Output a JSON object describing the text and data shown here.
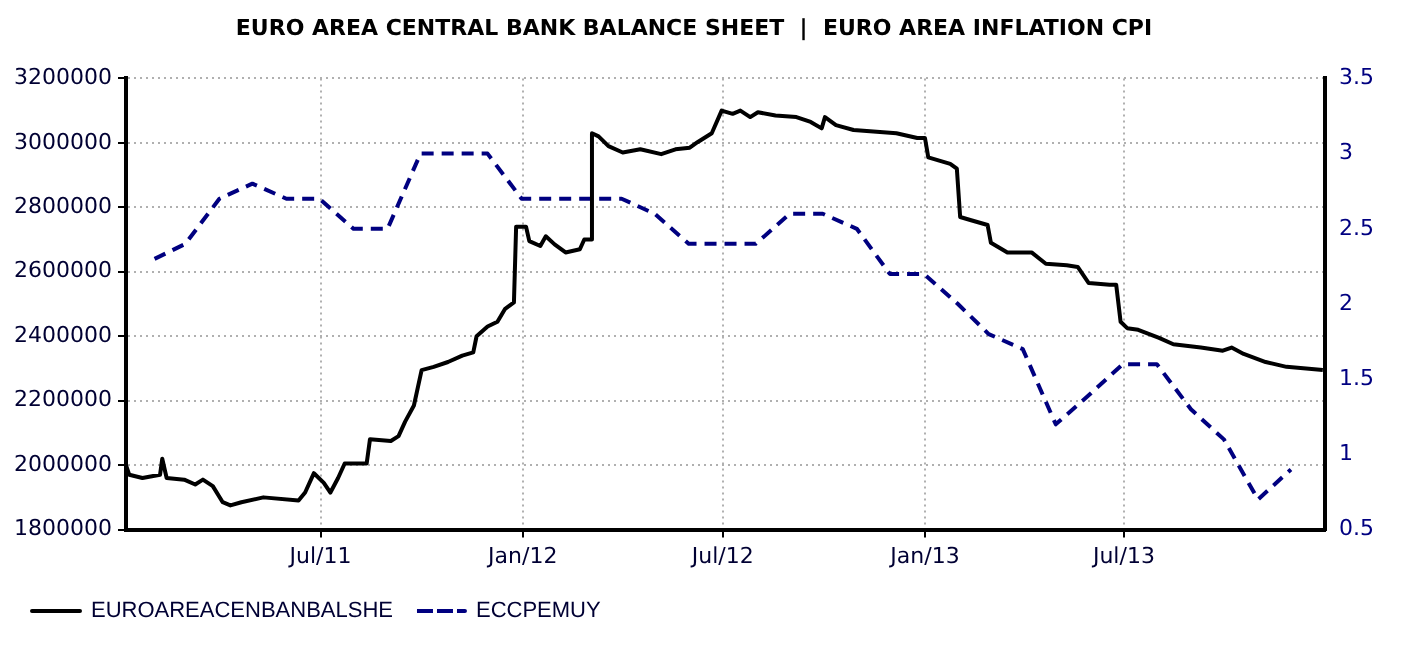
{
  "chart_data": {
    "type": "line",
    "title": "EURO AREA CENTRAL BANK BALANCE SHEET  |  EURO AREA INFLATION CPI",
    "xlim": [
      "2011-01-05",
      "2013-12-31"
    ],
    "xticks": [
      {
        "value": "2011-07-01",
        "label": "Jul/11"
      },
      {
        "value": "2012-01-01",
        "label": "Jan/12"
      },
      {
        "value": "2012-07-01",
        "label": "Jul/12"
      },
      {
        "value": "2013-01-01",
        "label": "Jan/13"
      },
      {
        "value": "2013-07-01",
        "label": "Jul/13"
      }
    ],
    "ylim": [
      1800000,
      3200000
    ],
    "yticks": [
      1800000,
      2000000,
      2200000,
      2400000,
      2600000,
      2800000,
      3000000,
      3200000
    ],
    "y2lim": [
      0.5,
      3.5
    ],
    "y2ticks": [
      0.5,
      1,
      1.5,
      2,
      2.5,
      3,
      3.5
    ],
    "grid": true,
    "legend": "bottom left",
    "series": [
      {
        "name": "EUROAREACENBANBALSHE",
        "color": "#000000",
        "line_style": "solid",
        "x": [
          "2011-01-05",
          "2011-01-08",
          "2011-01-20",
          "2011-02-05",
          "2011-02-07",
          "2011-02-11",
          "2011-02-27",
          "2011-03-09",
          "2011-03-16",
          "2011-03-25",
          "2011-04-03",
          "2011-04-10",
          "2011-04-20",
          "2011-05-10",
          "2011-06-11",
          "2011-06-17",
          "2011-06-25",
          "2011-07-04",
          "2011-07-10",
          "2011-07-17",
          "2011-07-23",
          "2011-08-12",
          "2011-08-15",
          "2011-09-03",
          "2011-09-10",
          "2011-09-16",
          "2011-09-24",
          "2011-10-01",
          "2011-10-12",
          "2011-10-25",
          "2011-11-07",
          "2011-11-17",
          "2011-11-20",
          "2011-11-30",
          "2011-12-09",
          "2011-12-16",
          "2011-12-24",
          "2011-12-26",
          "2012-01-04",
          "2012-01-07",
          "2012-01-17",
          "2012-01-22",
          "2012-01-30",
          "2012-02-09",
          "2012-02-22",
          "2012-02-26",
          "2012-03-03",
          "2012-03-04",
          "2012-03-10",
          "2012-03-19",
          "2012-04-01",
          "2012-04-17",
          "2012-05-06",
          "2012-05-19",
          "2012-06-01",
          "2012-06-08",
          "2012-06-21",
          "2012-06-30",
          "2012-07-10",
          "2012-07-17",
          "2012-07-26",
          "2012-08-02",
          "2012-08-18",
          "2012-09-06",
          "2012-09-19",
          "2012-09-29",
          "2012-10-02",
          "2012-10-12",
          "2012-10-28",
          "2012-12-06",
          "2012-12-25",
          "2013-01-01",
          "2013-01-04",
          "2013-01-24",
          "2013-01-30",
          "2013-02-02",
          "2013-02-12",
          "2013-02-27",
          "2013-03-02",
          "2013-03-17",
          "2013-04-08",
          "2013-04-21",
          "2013-05-10",
          "2013-05-20",
          "2013-05-30",
          "2013-06-18",
          "2013-06-24",
          "2013-06-28",
          "2013-07-04",
          "2013-07-14",
          "2013-08-02",
          "2013-08-15",
          "2013-09-09",
          "2013-09-29",
          "2013-10-07",
          "2013-10-18",
          "2013-11-07",
          "2013-11-26",
          "2013-12-29"
        ],
        "values": [
          2000000,
          1970000,
          1960000,
          1970000,
          2020000,
          1960000,
          1955000,
          1940000,
          1955000,
          1935000,
          1885000,
          1875000,
          1885000,
          1900000,
          1890000,
          1915000,
          1975000,
          1945000,
          1915000,
          1960000,
          2005000,
          2005000,
          2080000,
          2075000,
          2090000,
          2135000,
          2185000,
          2295000,
          2305000,
          2320000,
          2340000,
          2350000,
          2400000,
          2430000,
          2445000,
          2485000,
          2505000,
          2740000,
          2740000,
          2695000,
          2680000,
          2710000,
          2685000,
          2660000,
          2670000,
          2700000,
          2700000,
          3030000,
          3020000,
          2990000,
          2970000,
          2980000,
          2965000,
          2980000,
          2985000,
          3002000,
          3030000,
          3100000,
          3090000,
          3100000,
          3080000,
          3095000,
          3085000,
          3080000,
          3065000,
          3045000,
          3080000,
          3055000,
          3040000,
          3030000,
          3015000,
          3015000,
          2955000,
          2935000,
          2920000,
          2770000,
          2760000,
          2745000,
          2690000,
          2660000,
          2660000,
          2625000,
          2620000,
          2615000,
          2565000,
          2560000,
          2560000,
          2445000,
          2425000,
          2420000,
          2395000,
          2375000,
          2365000,
          2355000,
          2365000,
          2345000,
          2320000,
          2305000,
          2295000
        ]
      },
      {
        "name": "ECCPEMUY",
        "color": "#000080",
        "line_style": "dashed",
        "axis": "y2",
        "x": [
          "2011-01-31",
          "2011-02-28",
          "2011-03-31",
          "2011-04-30",
          "2011-05-31",
          "2011-06-30",
          "2011-07-31",
          "2011-08-31",
          "2011-09-30",
          "2011-10-31",
          "2011-11-30",
          "2011-12-31",
          "2012-01-31",
          "2012-02-29",
          "2012-03-31",
          "2012-04-30",
          "2012-05-31",
          "2012-06-30",
          "2012-07-31",
          "2012-08-31",
          "2012-09-30",
          "2012-10-31",
          "2012-11-30",
          "2012-12-31",
          "2013-01-31",
          "2013-02-28",
          "2013-03-31",
          "2013-04-30",
          "2013-05-31",
          "2013-06-30",
          "2013-07-31",
          "2013-08-31",
          "2013-09-30",
          "2013-10-31",
          "2013-11-30"
        ],
        "values": [
          2.3,
          2.4,
          2.7,
          2.8,
          2.7,
          2.7,
          2.5,
          2.5,
          3.0,
          3.0,
          3.0,
          2.7,
          2.7,
          2.7,
          2.7,
          2.6,
          2.4,
          2.4,
          2.4,
          2.6,
          2.6,
          2.5,
          2.2,
          2.2,
          2.0,
          1.8,
          1.7,
          1.2,
          1.4,
          1.6,
          1.6,
          1.3,
          1.1,
          0.7,
          0.9
        ]
      }
    ]
  }
}
